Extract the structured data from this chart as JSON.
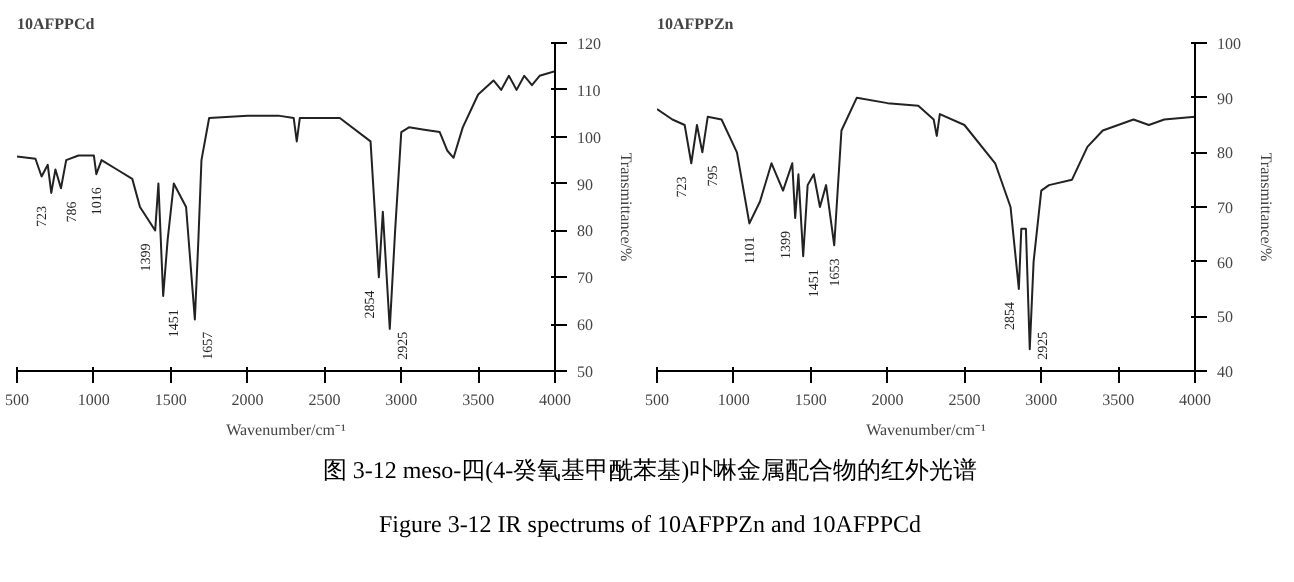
{
  "chart_data": [
    {
      "type": "line",
      "title": "10AFPPCd",
      "xlabel": "Wavenumber/cm⁻¹",
      "ylabel": "Transmittance/%",
      "xlim": [
        500,
        4000
      ],
      "xticks": [
        500,
        1000,
        1500,
        2000,
        2500,
        3000,
        3500,
        4000
      ],
      "ylim": [
        50,
        120
      ],
      "yticks": [
        50,
        60,
        70,
        80,
        90,
        100,
        110,
        120
      ],
      "grid": false,
      "x": [
        500,
        620,
        660,
        700,
        723,
        750,
        786,
        820,
        900,
        1000,
        1016,
        1050,
        1150,
        1250,
        1300,
        1399,
        1420,
        1451,
        1480,
        1520,
        1600,
        1657,
        1680,
        1700,
        1750,
        2000,
        2200,
        2300,
        2320,
        2340,
        2600,
        2800,
        2854,
        2880,
        2925,
        2960,
        3000,
        3050,
        3150,
        3250,
        3300,
        3340,
        3400,
        3500,
        3600,
        3650,
        3700,
        3750,
        3800,
        3850,
        3900,
        4000
      ],
      "series": [
        {
          "color": "#222222",
          "values": [
            95.8,
            95.3,
            91.5,
            94,
            88,
            93,
            89,
            95,
            96,
            96,
            92,
            95,
            93,
            91,
            85,
            80,
            90,
            66,
            78,
            90,
            85,
            61,
            78,
            95,
            104,
            104.5,
            104.5,
            104,
            99,
            104,
            104,
            99,
            70,
            84,
            59,
            80,
            101,
            102,
            101.5,
            101,
            97,
            95.5,
            102,
            109,
            112,
            110,
            113,
            110,
            113,
            111,
            113,
            114
          ]
        }
      ],
      "annotations": [
        {
          "text": "723",
          "x": 723,
          "y": 88
        },
        {
          "text": "786",
          "x": 786,
          "y": 89
        },
        {
          "text": "1016",
          "x": 1016,
          "y": 92
        },
        {
          "text": "1399",
          "x": 1399,
          "y": 80
        },
        {
          "text": "1451",
          "x": 1451,
          "y": 66
        },
        {
          "text": "1657",
          "x": 1657,
          "y": 61
        },
        {
          "text": "2854",
          "x": 2854,
          "y": 70
        },
        {
          "text": "2925",
          "x": 2925,
          "y": 59
        }
      ]
    },
    {
      "type": "line",
      "title": "10AFPPZn",
      "xlabel": "Wavenumber/cm⁻¹",
      "ylabel": "Transmittance/%",
      "xlim": [
        500,
        4000
      ],
      "xticks": [
        500,
        1000,
        1500,
        2000,
        2500,
        3000,
        3500,
        4000
      ],
      "ylim": [
        40,
        100
      ],
      "yticks": [
        40,
        50,
        60,
        70,
        80,
        90,
        100
      ],
      "grid": false,
      "x": [
        500,
        600,
        680,
        723,
        760,
        795,
        830,
        920,
        1020,
        1101,
        1170,
        1245,
        1320,
        1380,
        1399,
        1420,
        1451,
        1480,
        1520,
        1560,
        1600,
        1653,
        1700,
        1800,
        2000,
        2200,
        2300,
        2320,
        2340,
        2500,
        2700,
        2800,
        2854,
        2870,
        2900,
        2925,
        2950,
        3000,
        3050,
        3200,
        3300,
        3400,
        3500,
        3600,
        3700,
        3800,
        4000
      ],
      "series": [
        {
          "color": "#222222",
          "values": [
            87.9,
            86,
            85,
            78,
            85,
            80,
            86.5,
            86,
            80,
            67,
            71,
            78,
            73,
            78,
            68,
            76,
            61,
            74,
            76,
            70,
            74,
            63,
            84,
            90,
            89,
            88.5,
            86,
            83,
            87,
            85,
            78,
            70,
            55,
            66,
            66,
            44,
            60,
            73,
            74,
            75,
            81,
            84,
            85,
            86,
            85,
            86,
            86.5
          ]
        }
      ],
      "annotations": [
        {
          "text": "723",
          "x": 723,
          "y": 78
        },
        {
          "text": "795",
          "x": 795,
          "y": 80
        },
        {
          "text": "1101",
          "x": 1101,
          "y": 67
        },
        {
          "text": "1399",
          "x": 1399,
          "y": 68
        },
        {
          "text": "1451",
          "x": 1451,
          "y": 61
        },
        {
          "text": "1653",
          "x": 1653,
          "y": 63
        },
        {
          "text": "2854",
          "x": 2854,
          "y": 55
        },
        {
          "text": "2925",
          "x": 2925,
          "y": 44
        },
        "图 3-12 meso-四(4-癸氧基甲酰苯基)卟啉金属配合物的红外光谱",
        "Figure 3-12 IR spectrums of 10AFPPZn and 10AFPPCd"
      ]
    }
  ]
}
